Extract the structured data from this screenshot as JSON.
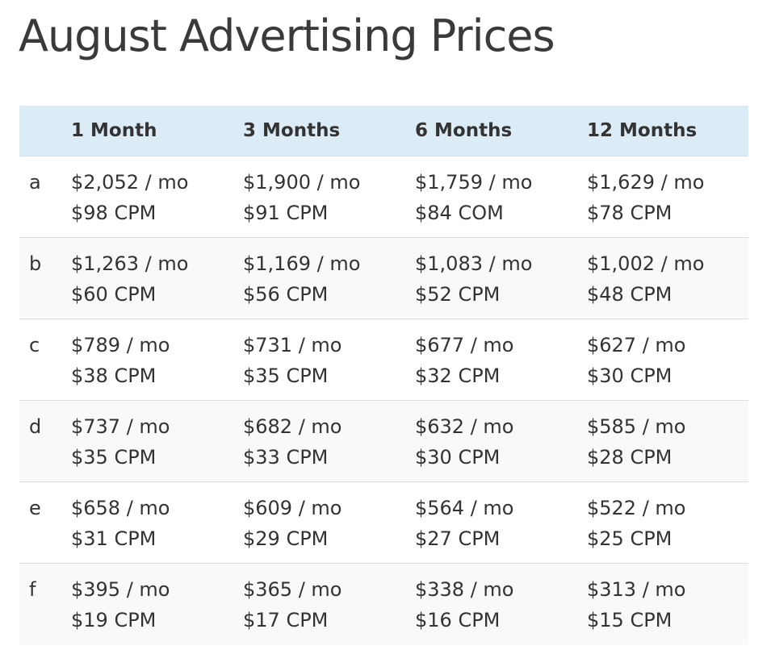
{
  "page": {
    "title": "August Advertising Prices"
  },
  "table": {
    "headers": [
      "",
      "1 Month",
      "3 Months",
      "6 Months",
      "12 Months"
    ],
    "rows": [
      {
        "tier": "a",
        "cells": [
          {
            "monthly": "$2,052 / mo",
            "cpm": "$98 CPM"
          },
          {
            "monthly": "$1,900 / mo",
            "cpm": "$91 CPM"
          },
          {
            "monthly": "$1,759 / mo",
            "cpm": "$84 COM"
          },
          {
            "monthly": "$1,629 / mo",
            "cpm": "$78 CPM"
          }
        ]
      },
      {
        "tier": "b",
        "cells": [
          {
            "monthly": "$1,263 / mo",
            "cpm": "$60 CPM"
          },
          {
            "monthly": "$1,169 / mo",
            "cpm": "$56 CPM"
          },
          {
            "monthly": "$1,083 / mo",
            "cpm": "$52 CPM"
          },
          {
            "monthly": "$1,002 / mo",
            "cpm": "$48 CPM"
          }
        ]
      },
      {
        "tier": "c",
        "cells": [
          {
            "monthly": "$789 / mo",
            "cpm": "$38 CPM"
          },
          {
            "monthly": "$731 / mo",
            "cpm": "$35 CPM"
          },
          {
            "monthly": "$677 / mo",
            "cpm": "$32 CPM"
          },
          {
            "monthly": "$627 / mo",
            "cpm": "$30 CPM"
          }
        ]
      },
      {
        "tier": "d",
        "cells": [
          {
            "monthly": "$737 / mo",
            "cpm": "$35 CPM"
          },
          {
            "monthly": "$682 / mo",
            "cpm": "$33 CPM"
          },
          {
            "monthly": "$632 / mo",
            "cpm": "$30 CPM"
          },
          {
            "monthly": "$585 / mo",
            "cpm": "$28 CPM"
          }
        ]
      },
      {
        "tier": "e",
        "cells": [
          {
            "monthly": "$658 / mo",
            "cpm": "$31 CPM"
          },
          {
            "monthly": "$609 / mo",
            "cpm": "$29 CPM"
          },
          {
            "monthly": "$564 / mo",
            "cpm": "$27 CPM"
          },
          {
            "monthly": "$522 / mo",
            "cpm": "$25 CPM"
          }
        ]
      },
      {
        "tier": "f",
        "cells": [
          {
            "monthly": "$395 / mo",
            "cpm": "$19 CPM"
          },
          {
            "monthly": "$365 / mo",
            "cpm": "$17 CPM"
          },
          {
            "monthly": "$338 / mo",
            "cpm": "$16 CPM"
          },
          {
            "monthly": "$313 / mo",
            "cpm": "$15 CPM"
          }
        ]
      }
    ]
  },
  "colors": {
    "header_background": "#dbecf7",
    "alt_row_background": "#f9f9f9",
    "row_divider": "#dddddd",
    "text": "#333333"
  }
}
